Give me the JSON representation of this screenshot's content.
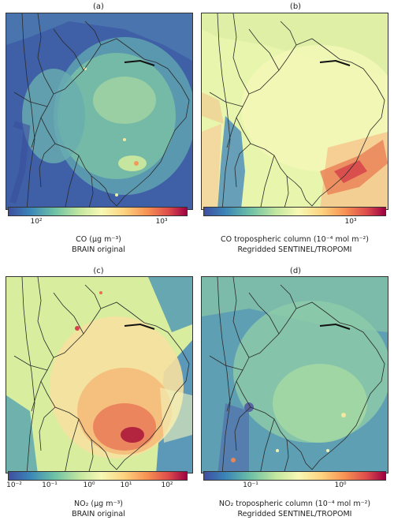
{
  "panels": [
    {
      "letter": "(a)",
      "unit_line": "CO (μg m⁻³)",
      "source_line": "BRAIN original",
      "ticks": [
        "10²",
        "10³"
      ]
    },
    {
      "letter": "(b)",
      "unit_line": "CO tropospheric column (10⁻⁴ mol m⁻²)",
      "source_line": "Regridded SENTINEL/TROPOMI",
      "ticks": [
        "10³"
      ]
    },
    {
      "letter": "(c)",
      "unit_line": "NO₂ (μg m⁻³)",
      "source_line": "BRAIN original",
      "ticks": [
        "10⁻²",
        "10⁻¹",
        "10⁰",
        "10¹",
        "10²"
      ]
    },
    {
      "letter": "(d)",
      "unit_line": "NO₂ tropospheric column (10⁻⁴ mol m⁻²)",
      "source_line": "Regridded SENTINEL/TROPOMI",
      "ticks": [
        "10⁻¹",
        "10⁰"
      ]
    }
  ],
  "colormap": {
    "name": "Spectral_r",
    "stops": [
      "#3f4fa1",
      "#3a86b8",
      "#6ec2a5",
      "#c4e79f",
      "#f7f9b5",
      "#fdd27f",
      "#f79052",
      "#dc4a4c",
      "#9e0142"
    ]
  }
}
